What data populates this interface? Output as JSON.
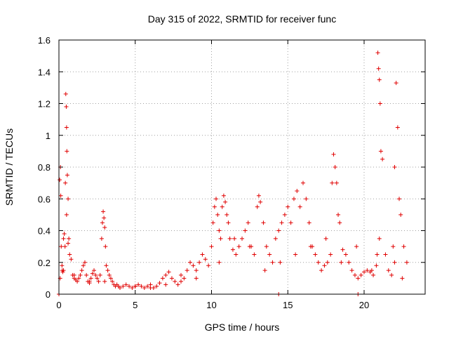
{
  "chart_data": {
    "type": "scatter",
    "title": "Day 315 of 2022, SRMTID for receiver func",
    "xlabel": "GPS time / hours",
    "ylabel": "SRMTID / TECUs",
    "xlim": [
      0,
      24
    ],
    "ylim": [
      0,
      1.6
    ],
    "xticks": [
      0,
      5,
      10,
      15,
      20
    ],
    "yticks": [
      0,
      0.2,
      0.4,
      0.6,
      0.8,
      1,
      1.2,
      1.4,
      1.6
    ],
    "xtick_labels": [
      "0",
      "5",
      "10",
      "15",
      "20"
    ],
    "ytick_labels": [
      "0",
      "0.2",
      "0.4",
      "0.6",
      "0.8",
      "1",
      "1.2",
      "1.4",
      "1.6"
    ],
    "grid": true,
    "marker": "plus",
    "color": "#e00000",
    "series": [
      {
        "name": "SRMTID",
        "x": [
          0.05,
          0.1,
          0.12,
          0.15,
          0.2,
          0.22,
          0.25,
          0.3,
          0.35,
          0.4,
          0.45,
          0.48,
          0.5,
          0.52,
          0.55,
          0.6,
          0.65,
          0.7,
          0.8,
          0.9,
          1.0,
          1.1,
          1.2,
          1.3,
          1.4,
          1.5,
          1.6,
          1.7,
          1.8,
          1.9,
          2.0,
          2.1,
          2.2,
          2.3,
          2.4,
          2.5,
          2.6,
          2.7,
          2.8,
          2.85,
          2.9,
          2.95,
          3.0,
          3.05,
          3.1,
          3.2,
          3.3,
          3.4,
          3.5,
          3.6,
          3.7,
          3.8,
          3.9,
          4.0,
          4.2,
          4.4,
          4.6,
          4.8,
          5.0,
          5.2,
          5.4,
          5.6,
          5.8,
          6.0,
          6.2,
          6.4,
          6.6,
          6.8,
          7.0,
          7.2,
          7.4,
          7.6,
          7.8,
          8.0,
          8.2,
          8.4,
          8.6,
          8.8,
          9.0,
          9.2,
          9.4,
          9.6,
          9.8,
          10.0,
          10.1,
          10.2,
          10.3,
          10.4,
          10.5,
          10.6,
          10.7,
          10.8,
          10.9,
          11.0,
          11.1,
          11.2,
          11.4,
          11.6,
          11.8,
          12.0,
          12.2,
          12.4,
          12.6,
          12.8,
          13.0,
          13.1,
          13.2,
          13.4,
          13.6,
          13.8,
          14.0,
          14.2,
          14.4,
          14.6,
          14.8,
          15.0,
          15.2,
          15.4,
          15.6,
          15.8,
          16.0,
          16.2,
          16.4,
          16.6,
          16.8,
          17.0,
          17.2,
          17.4,
          17.6,
          17.8,
          17.9,
          18.0,
          18.1,
          18.2,
          18.3,
          18.4,
          18.6,
          18.8,
          19.0,
          19.2,
          19.4,
          19.6,
          19.8,
          20.0,
          20.2,
          20.4,
          20.6,
          20.8,
          20.85,
          20.9,
          20.95,
          21.0,
          21.05,
          21.1,
          21.2,
          21.4,
          21.6,
          21.8,
          21.9,
          22.0,
          22.1,
          22.2,
          22.3,
          22.4,
          22.6,
          22.8,
          0.08,
          0.3,
          0.42,
          0.5,
          0.6,
          1.0,
          2.0,
          3.0,
          5.0,
          6.0,
          7.0,
          8.0,
          9.0,
          10.5,
          11.5,
          12.5,
          13.5,
          14.5,
          15.5,
          16.5,
          17.5,
          18.5,
          19.5,
          20.5,
          21.0,
          22.0,
          22.5,
          14.4,
          19.6,
          0.0
        ],
        "y": [
          0.72,
          0.8,
          0.62,
          0.3,
          0.18,
          0.15,
          0.14,
          0.35,
          0.38,
          0.3,
          1.26,
          1.18,
          1.05,
          0.9,
          0.75,
          0.6,
          0.35,
          0.25,
          0.22,
          0.12,
          0.1,
          0.09,
          0.08,
          0.1,
          0.12,
          0.15,
          0.18,
          0.2,
          0.12,
          0.08,
          0.07,
          0.1,
          0.13,
          0.15,
          0.12,
          0.1,
          0.08,
          0.12,
          0.35,
          0.45,
          0.52,
          0.48,
          0.42,
          0.3,
          0.18,
          0.15,
          0.12,
          0.1,
          0.08,
          0.06,
          0.05,
          0.06,
          0.05,
          0.04,
          0.05,
          0.06,
          0.05,
          0.04,
          0.05,
          0.06,
          0.05,
          0.04,
          0.05,
          0.06,
          0.04,
          0.05,
          0.07,
          0.1,
          0.12,
          0.14,
          0.1,
          0.08,
          0.06,
          0.08,
          0.1,
          0.15,
          0.2,
          0.18,
          0.15,
          0.2,
          0.25,
          0.22,
          0.18,
          0.3,
          0.45,
          0.55,
          0.6,
          0.5,
          0.4,
          0.35,
          0.55,
          0.62,
          0.58,
          0.5,
          0.45,
          0.35,
          0.28,
          0.25,
          0.3,
          0.35,
          0.4,
          0.45,
          0.3,
          0.25,
          0.55,
          0.62,
          0.58,
          0.45,
          0.3,
          0.25,
          0.2,
          0.35,
          0.4,
          0.45,
          0.5,
          0.55,
          0.45,
          0.6,
          0.65,
          0.55,
          0.7,
          0.6,
          0.45,
          0.3,
          0.25,
          0.2,
          0.15,
          0.18,
          0.2,
          0.25,
          0.7,
          0.88,
          0.8,
          0.7,
          0.5,
          0.45,
          0.28,
          0.25,
          0.2,
          0.15,
          0.12,
          0.1,
          0.12,
          0.14,
          0.15,
          0.14,
          0.12,
          0.18,
          0.25,
          1.52,
          1.42,
          1.35,
          1.2,
          0.9,
          0.85,
          0.25,
          0.15,
          0.12,
          0.3,
          0.8,
          1.33,
          1.05,
          0.6,
          0.5,
          0.3,
          0.2,
          0.1,
          0.15,
          0.7,
          0.5,
          0.32,
          0.12,
          0.08,
          0.08,
          0.05,
          0.04,
          0.06,
          0.12,
          0.1,
          0.2,
          0.35,
          0.3,
          0.15,
          0.2,
          0.25,
          0.3,
          0.35,
          0.2,
          0.3,
          0.15,
          0.35,
          0.2,
          0.1,
          0.0,
          0.0,
          0.0
        ]
      }
    ]
  }
}
